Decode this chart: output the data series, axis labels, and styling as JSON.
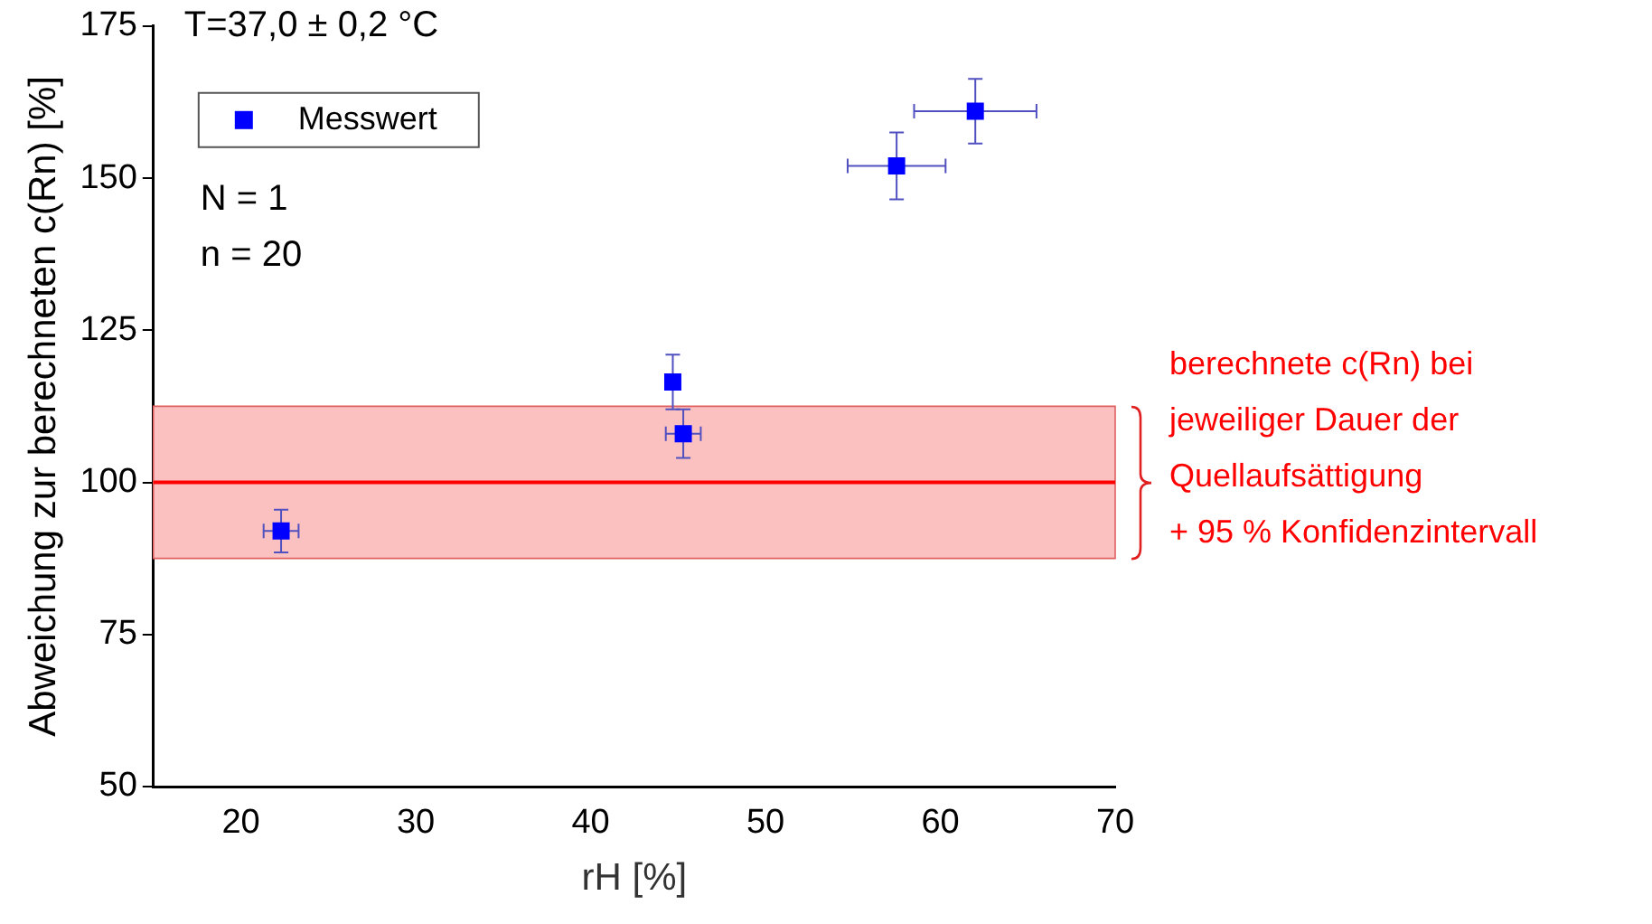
{
  "chart_data": {
    "type": "scatter",
    "xlabel": "rH [%]",
    "ylabel": "Abweichung zur berechneten c(Rn) [%]",
    "xlim": [
      15,
      70
    ],
    "xticks": [
      20,
      30,
      40,
      50,
      60,
      70
    ],
    "ylim": [
      50,
      175
    ],
    "yticks": [
      50,
      75,
      100,
      125,
      150,
      175
    ],
    "series": [
      {
        "name": "Messwert",
        "color": "#0000ff",
        "x": [
          22.3,
          44.7,
          45.3,
          57.5,
          62.0
        ],
        "values": [
          92,
          116.5,
          108,
          152,
          161
        ],
        "errors": [
          3.5,
          4.5,
          4,
          5.5,
          5.3
        ],
        "xerrors": [
          1,
          null,
          1,
          2.8,
          3.5
        ]
      }
    ],
    "marker": "square",
    "legend": "top left",
    "grid": false,
    "ref_lines": [
      {
        "axis": "y",
        "value": 100,
        "color": "#ff0000"
      }
    ],
    "bands": [
      {
        "axis": "y",
        "from": 87.5,
        "to": 112.5,
        "color": "#fbc0c0",
        "label": "berechnete c(Rn) bei\njeweiliger Dauer der\nQuellaufsättigung\n+ 95 % Konfidenzintervall"
      }
    ],
    "annotations": [
      "T=37,0 ± 0,2 °C",
      "N = 1",
      "n = 20"
    ]
  }
}
